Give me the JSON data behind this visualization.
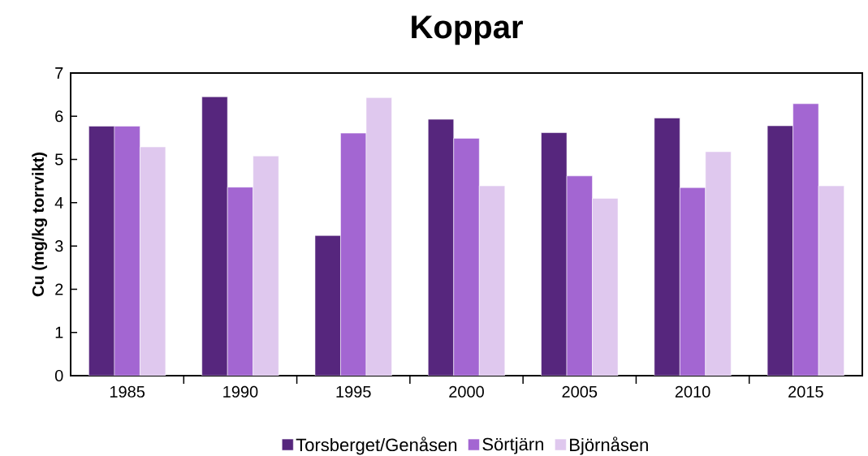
{
  "chart_data": {
    "type": "bar",
    "title": "Koppar",
    "ylabel": "Cu (mg/kg torrvikt)",
    "categories": [
      "1985",
      "1990",
      "1995",
      "2000",
      "2005",
      "2010",
      "2015"
    ],
    "series": [
      {
        "name": "Torsberget/Genåsen",
        "color": "#56267d",
        "values": [
          5.77,
          6.45,
          3.24,
          5.93,
          5.62,
          5.96,
          5.78
        ]
      },
      {
        "name": "Sörtjärn",
        "color": "#a366d2",
        "values": [
          5.77,
          4.36,
          5.61,
          5.49,
          4.62,
          4.35,
          6.29
        ]
      },
      {
        "name": "Björnåsen",
        "color": "#dfc8ee",
        "values": [
          5.29,
          5.08,
          6.43,
          4.39,
          4.1,
          5.18,
          4.39
        ]
      }
    ],
    "ylim": [
      0,
      7
    ],
    "yticks": [
      0,
      1,
      2,
      3,
      4,
      5,
      6,
      7
    ],
    "legend": "bottom"
  }
}
